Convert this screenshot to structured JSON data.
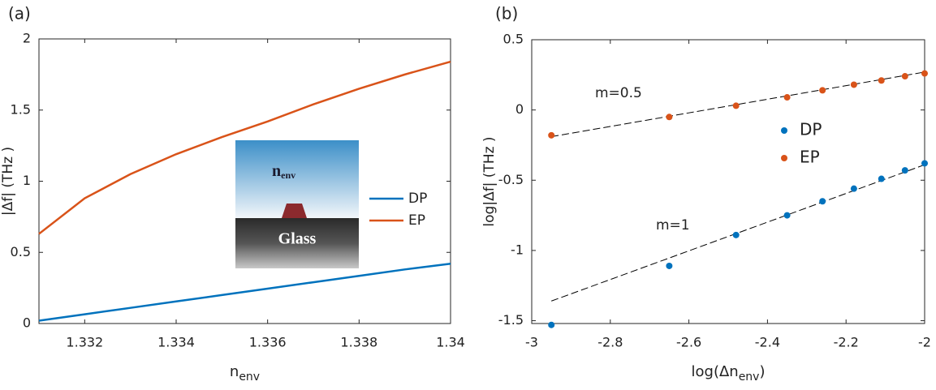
{
  "chart_data": [
    {
      "type": "line",
      "title": "(a)",
      "xlabel": "n",
      "xlabel_sub": "env",
      "ylabel": "|Δf| (THz )",
      "x": [
        1.331,
        1.332,
        1.333,
        1.334,
        1.335,
        1.336,
        1.337,
        1.338,
        1.339,
        1.34
      ],
      "series": [
        {
          "name": "DP",
          "color": "#0072bd",
          "values": [
            0.02,
            0.065,
            0.11,
            0.155,
            0.2,
            0.245,
            0.29,
            0.335,
            0.38,
            0.42
          ]
        },
        {
          "name": "EP",
          "color": "#d95319",
          "values": [
            0.63,
            0.88,
            1.05,
            1.19,
            1.31,
            1.42,
            1.54,
            1.65,
            1.75,
            1.84
          ]
        }
      ],
      "xlim": [
        1.331,
        1.34
      ],
      "xticks": [
        1.332,
        1.334,
        1.336,
        1.338,
        1.34
      ],
      "ylim": [
        0,
        2
      ],
      "yticks": [
        0,
        0.5,
        1,
        1.5,
        2
      ],
      "inset": {
        "label": "n",
        "label_sub": "env",
        "substrate": "Glass"
      }
    },
    {
      "type": "scatter",
      "title": "(b)",
      "xlabel": "log(Δn",
      "xlabel_sub": "env",
      "xlabel_end": ")",
      "ylabel": "log|Δf| (THz )",
      "x": [
        -2.95,
        -2.65,
        -2.48,
        -2.35,
        -2.26,
        -2.18,
        -2.11,
        -2.05,
        -2
      ],
      "series": [
        {
          "name": "DP",
          "color": "#0072bd",
          "values": [
            -1.53,
            -1.11,
            -0.89,
            -0.75,
            -0.65,
            -0.56,
            -0.49,
            -0.43,
            -0.38
          ]
        },
        {
          "name": "EP",
          "color": "#d95319",
          "values": [
            -0.18,
            -0.05,
            0.03,
            0.09,
            0.14,
            0.18,
            0.21,
            0.24,
            0.26
          ]
        }
      ],
      "fits": [
        {
          "color": "#000000",
          "x": [
            -2.95,
            -2
          ],
          "values": [
            -1.36,
            -0.39
          ]
        },
        {
          "color": "#000000",
          "x": [
            -2.95,
            -2
          ],
          "values": [
            -0.19,
            0.27
          ]
        }
      ],
      "annotations": [
        "m=0.5",
        "m=1"
      ],
      "xlim": [
        -3,
        -2
      ],
      "xticks": [
        -3,
        -2.8,
        -2.6,
        -2.4,
        -2.2,
        -2
      ],
      "ylim": [
        -1.52,
        0.5
      ],
      "yticks": [
        -1.5,
        -1,
        -0.5,
        0,
        0.5
      ]
    }
  ]
}
